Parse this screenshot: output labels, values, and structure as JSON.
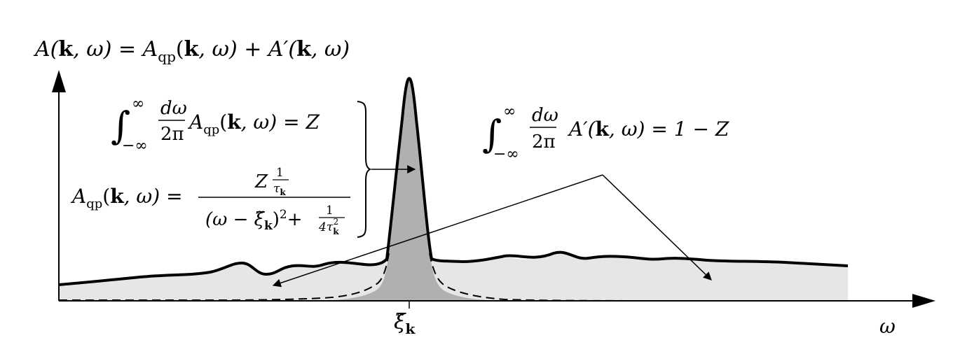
{
  "title_equation": {
    "lhs": "A(",
    "k": "k",
    "omega_close": ", ω) = A",
    "qp": "qp",
    "mid": "(",
    "k2": "k",
    "rest": ", ω) + A′(",
    "k3": "k",
    "end": ", ω)"
  },
  "eq_qp_integral": {
    "integral_sign": "∫",
    "upper": "∞",
    "lower": "−∞",
    "frac_num": "dω",
    "frac_den": "2π",
    "body": "A",
    "sub": "qp",
    "args_open": "(",
    "k": "k",
    "args_close": ", ω) = Z"
  },
  "eq_qp_form": {
    "lhs": "A",
    "sub": "qp",
    "args_open": "(",
    "k": "k",
    "args_close": ", ω) =",
    "num_Z": "Z",
    "num_frac_num": "1",
    "num_frac_den": "τ",
    "den_left": "(ω − ξ̃",
    "den_sub_k": "k",
    "den_mid": ")",
    "den_sup": "2",
    "den_plus": "+",
    "den_frac_num": "1",
    "den_frac_den": "4τ",
    "den_frac_sup": "2"
  },
  "eq_incoherent_integral": {
    "integral_sign": "∫",
    "upper": "∞",
    "lower": "−∞",
    "frac_num": "dω",
    "frac_den": "2π",
    "body": "A′(",
    "k": "k",
    "args_close": ", ω) = 1 − Z"
  },
  "x_tick": {
    "symbol": "ξ̃",
    "sub": "k"
  },
  "x_axis_label": "ω",
  "colors": {
    "peak_fill": "#b0b0b0",
    "background_fill": "#e6e6e6",
    "line": "#000000"
  }
}
